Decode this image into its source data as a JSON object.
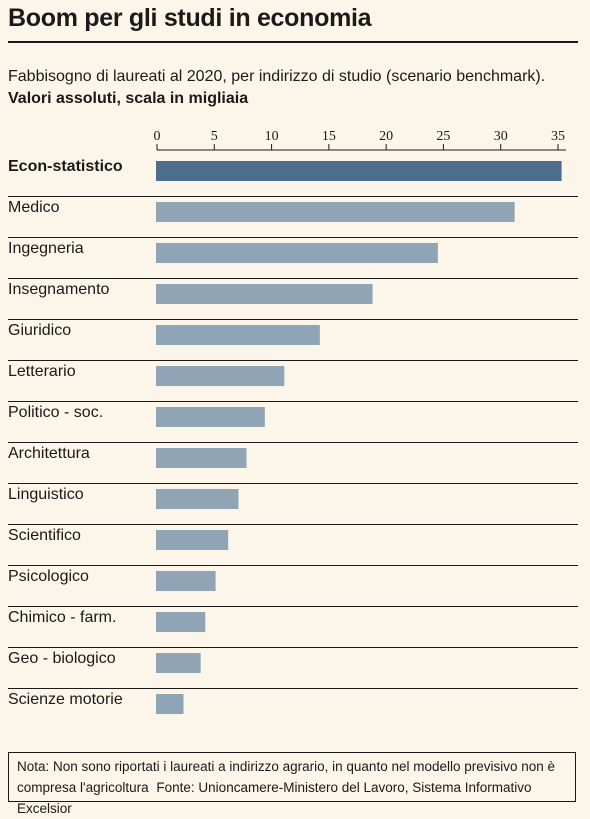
{
  "header": {
    "title": "Boom per gli studi in economia",
    "subtitle": "Fabbisogno di laureati al 2020, per indirizzo di studio (scenario benchmark).",
    "subtitle_bold": "Valori assoluti, scala in migliaia"
  },
  "footer": {
    "note_line1": "Nota: Non sono riportati i laureati a indirizzo agrario, in quanto nel modello previsivo non è",
    "note_line2": "compresa l'agricoltura",
    "source": "Fonte: Unioncamere-Ministero del Lavoro, Sistema Informativo Excelsior"
  },
  "chart_data": {
    "type": "bar",
    "orientation": "horizontal",
    "categories": [
      "Econ-statistico",
      "Medico",
      "Ingegneria",
      "Insegnamento",
      "Giuridico",
      "Letterario",
      "Politico - soc.",
      "Architettura",
      "Linguistico",
      "Scientifico",
      "Psicologico",
      "Chimico - farm.",
      "Geo - biologico",
      "Scienze motorie"
    ],
    "values": [
      35.4,
      31.3,
      24.6,
      18.9,
      14.3,
      11.2,
      9.5,
      7.9,
      7.2,
      6.3,
      5.2,
      4.3,
      3.9,
      2.4
    ],
    "highlight_index": 0,
    "xticks": [
      0,
      5,
      10,
      15,
      20,
      25,
      30,
      35
    ],
    "xlim": [
      0,
      35
    ],
    "axis_position": "top",
    "colors": {
      "highlight": "#4d6d8c",
      "bar": "#8fa4b4",
      "background": "#fbf6e9",
      "rule": "#1a1a1a"
    }
  }
}
